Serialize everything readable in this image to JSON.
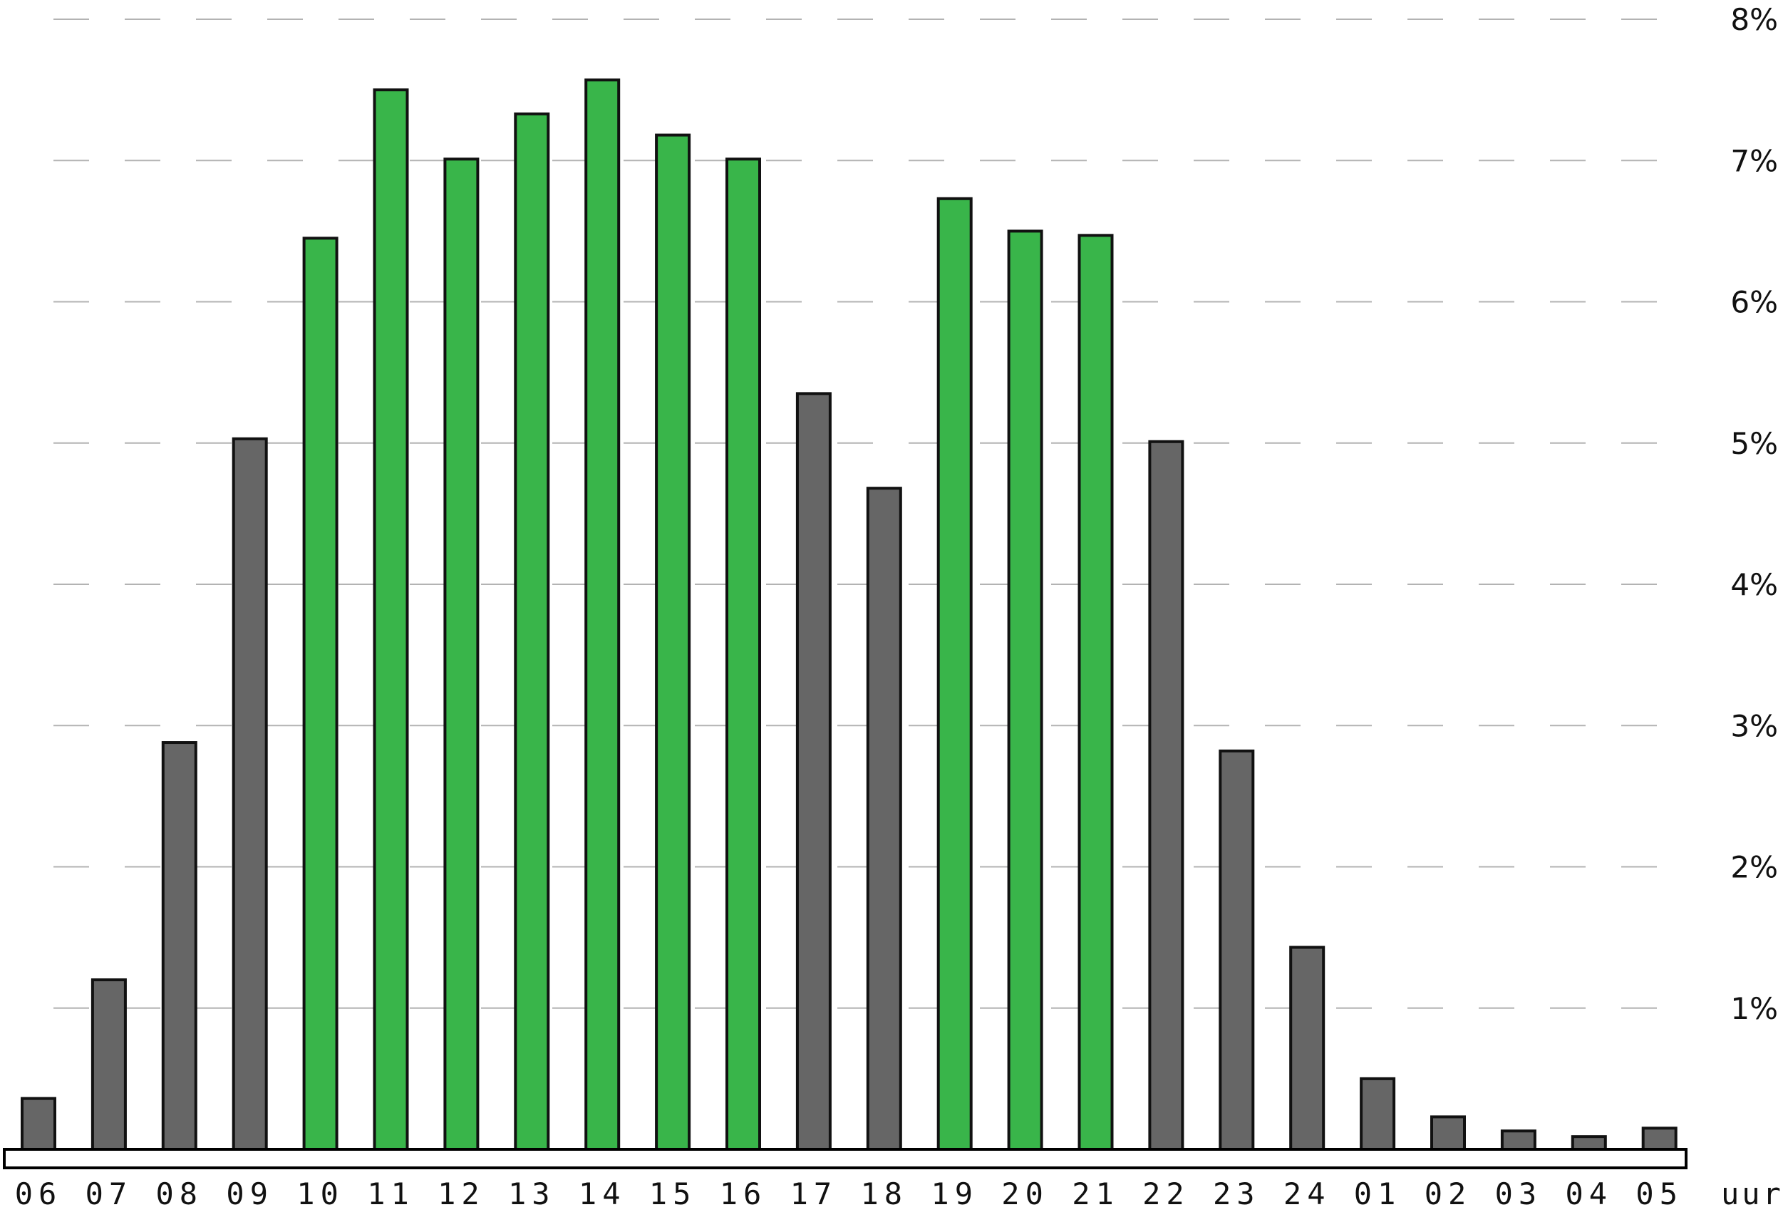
{
  "chart_data": {
    "type": "bar",
    "categories": [
      "06",
      "07",
      "08",
      "09",
      "10",
      "11",
      "12",
      "13",
      "14",
      "15",
      "16",
      "17",
      "18",
      "19",
      "20",
      "21",
      "22",
      "23",
      "24",
      "01",
      "02",
      "03",
      "04",
      "05"
    ],
    "values": [
      0.36,
      1.2,
      2.88,
      5.03,
      6.45,
      7.5,
      7.01,
      7.33,
      7.57,
      7.18,
      7.01,
      5.35,
      4.68,
      6.73,
      6.5,
      6.47,
      5.01,
      2.82,
      1.43,
      0.5,
      0.23,
      0.13,
      0.09,
      0.15
    ],
    "highlighted": [
      false,
      false,
      false,
      false,
      true,
      true,
      true,
      true,
      true,
      true,
      true,
      false,
      false,
      true,
      true,
      true,
      false,
      false,
      false,
      false,
      false,
      false,
      false,
      false
    ],
    "colors": {
      "highlight": "#39b54a",
      "normal": "#666666"
    },
    "ylim": [
      0,
      8
    ],
    "yticks": [
      1,
      2,
      3,
      4,
      5,
      6,
      7,
      8
    ],
    "ytick_labels": [
      "1%",
      "2%",
      "3%",
      "4%",
      "5%",
      "6%",
      "7%",
      "8%"
    ],
    "xlabel": "uur",
    "ylabel": "",
    "title": "",
    "grid": true,
    "y_axis_side": "right"
  }
}
